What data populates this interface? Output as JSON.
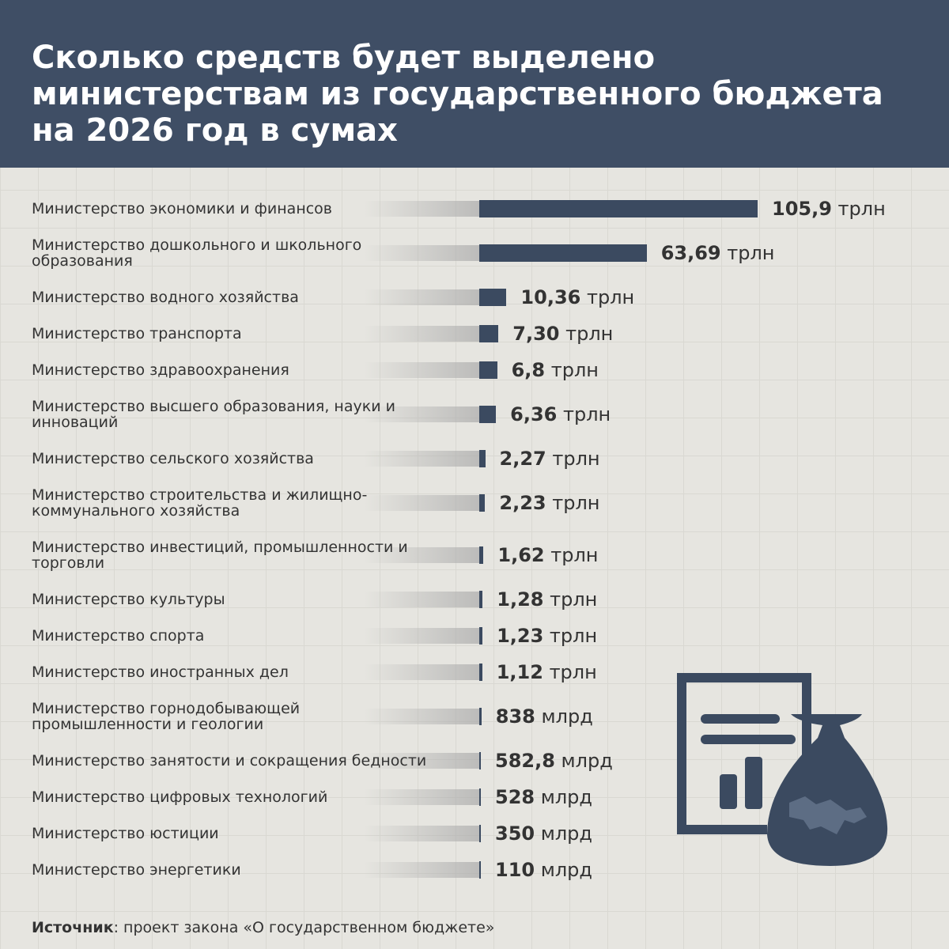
{
  "chart_data": {
    "type": "bar",
    "title": "Сколько средств будет выделено министерствам из государственного бюджета на 2026 год в сумах",
    "categories": [
      "Министерство экономики и финансов",
      "Министерство дошкольного и школьного образования",
      "Министерство водного хозяйства",
      "Министерство транспорта",
      "Министерство здравоохранения",
      "Министерство высшего образования, науки и инноваций",
      "Министерство сельского хозяйства",
      "Министерство строительства и жилищно-коммунального хозяйства",
      "Министерство инвестиций, промышленности и торговли",
      "Министерство культуры",
      "Министерство спорта",
      "Министерство иностранных дел",
      "Министерство горнодобывающей промышленности и геологии",
      "Министерство занятости и сокращения бедности",
      "Министерство цифровых технологий",
      "Министерство юстиции",
      "Министерство энергетики"
    ],
    "values": [
      105.9,
      63.69,
      10.36,
      7.3,
      6.8,
      6.36,
      2.27,
      2.23,
      1.62,
      1.28,
      1.23,
      1.12,
      0.838,
      0.5828,
      0.528,
      0.35,
      0.11
    ],
    "value_labels": [
      "105,9 трлн",
      "63,69 трлн",
      "10,36 трлн",
      "7,30 трлн",
      "6,8 трлн",
      "6,36 трлн",
      "2,27 трлн",
      "2,23 трлн",
      "1,62 трлн",
      "1,28 трлн",
      "1,23 трлн",
      "1,12 трлн",
      "838 млрд",
      "582,8 млрд",
      "528 млрд",
      "350 млрд",
      "110 млрд"
    ],
    "color": "#3b4a60",
    "source": {
      "label": "Источник",
      "text": ": проект закона «О государственном бюджете»"
    }
  }
}
